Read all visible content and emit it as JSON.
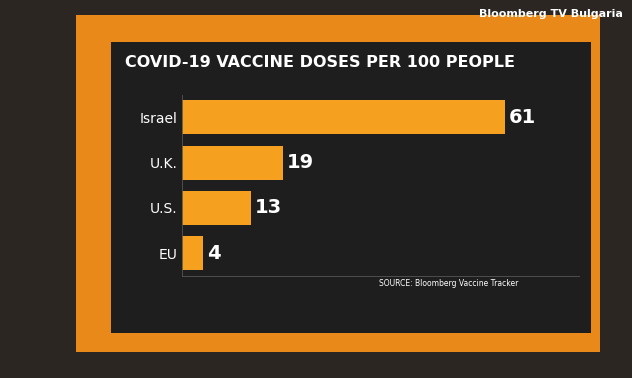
{
  "chart_data": {
    "type": "bar",
    "orientation": "horizontal",
    "title": "COVID-19 VACCINE DOSES PER 100 PEOPLE",
    "categories": [
      "Israel",
      "U.K.",
      "U.S.",
      "EU"
    ],
    "values": [
      61,
      19,
      13,
      4
    ],
    "color": "#f5a01e",
    "xlim": [
      0,
      75
    ],
    "xticks": [],
    "data_labels": true,
    "tick_labels": "y",
    "grid": false,
    "annotations": [
      "SOURCE: Bloomberg Vaccine Tracker",
      "Bloomberg TV Bulgaria"
    ]
  }
}
